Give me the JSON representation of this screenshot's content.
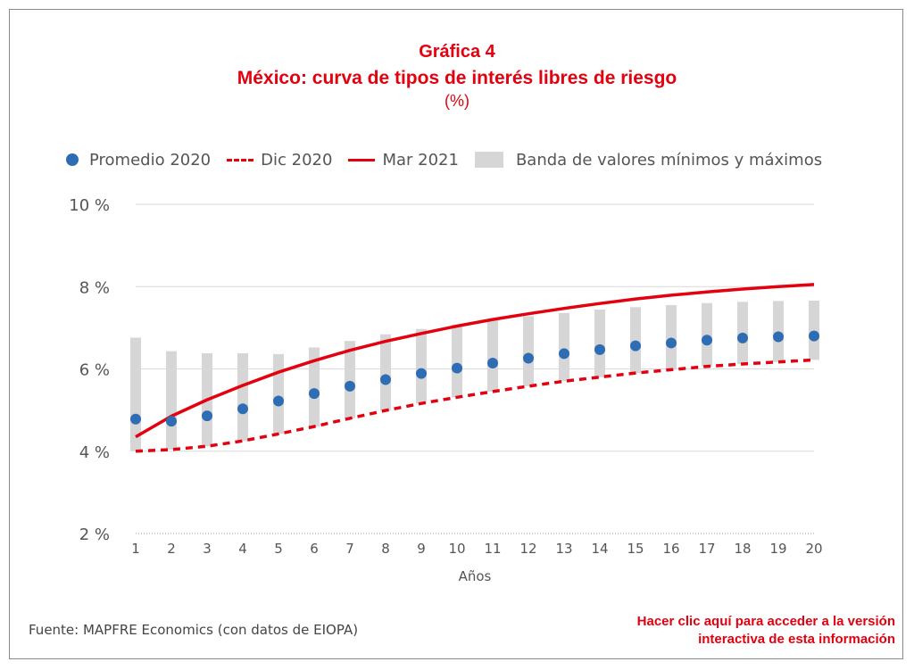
{
  "title": {
    "line1": "Gráfica 4",
    "line2": "México: curva de tipos de interés libres de riesgo",
    "line3": "(%)"
  },
  "legend": {
    "promedio": "Promedio 2020",
    "dic": "Dic 2020",
    "mar": "Mar 2021",
    "banda": "Banda de valores mínimos y máximos"
  },
  "footer": {
    "source": "Fuente: MAPFRE Economics (con datos de EIOPA)",
    "link_line1": "Hacer clic aquí para acceder a la versión",
    "link_line2": "interactiva de esta información"
  },
  "colors": {
    "accent": "#e3000f",
    "dots": "#2e6db4",
    "band": "#d6d6d6"
  },
  "chart_data": {
    "type": "line",
    "xlabel": "Años",
    "ylabel": "",
    "x": [
      1,
      2,
      3,
      4,
      5,
      6,
      7,
      8,
      9,
      10,
      11,
      12,
      13,
      14,
      15,
      16,
      17,
      18,
      19,
      20
    ],
    "ylim": [
      2,
      10
    ],
    "yticks": [
      2,
      4,
      6,
      8,
      10
    ],
    "ytick_labels": [
      "2 %",
      "4 %",
      "6 %",
      "8 %",
      "10 %"
    ],
    "grid": true,
    "legend_position": "top",
    "series": [
      {
        "name": "Promedio 2020",
        "kind": "scatter",
        "values": [
          4.78,
          4.73,
          4.86,
          5.03,
          5.22,
          5.4,
          5.58,
          5.74,
          5.89,
          6.02,
          6.14,
          6.26,
          6.37,
          6.47,
          6.56,
          6.63,
          6.7,
          6.75,
          6.78,
          6.8
        ]
      },
      {
        "name": "Dic 2020",
        "kind": "dashed-line",
        "values": [
          4.0,
          4.04,
          4.12,
          4.25,
          4.42,
          4.6,
          4.8,
          4.99,
          5.16,
          5.31,
          5.45,
          5.58,
          5.7,
          5.8,
          5.9,
          5.98,
          6.06,
          6.12,
          6.17,
          6.22
        ]
      },
      {
        "name": "Mar 2021",
        "kind": "line",
        "values": [
          4.35,
          4.85,
          5.25,
          5.6,
          5.92,
          6.2,
          6.45,
          6.67,
          6.86,
          7.04,
          7.2,
          7.34,
          7.47,
          7.59,
          7.7,
          7.79,
          7.87,
          7.94,
          8.0,
          8.05
        ]
      },
      {
        "name": "Banda de valores mínimos y máximos",
        "kind": "band",
        "min": [
          4.0,
          4.04,
          4.12,
          4.25,
          4.42,
          4.6,
          4.8,
          4.99,
          5.16,
          5.31,
          5.45,
          5.58,
          5.7,
          5.8,
          5.9,
          5.98,
          6.06,
          6.12,
          6.17,
          6.22
        ],
        "max": [
          6.76,
          6.43,
          6.38,
          6.38,
          6.36,
          6.52,
          6.68,
          6.84,
          6.97,
          7.08,
          7.18,
          7.28,
          7.36,
          7.44,
          7.5,
          7.55,
          7.6,
          7.63,
          7.65,
          7.66
        ]
      }
    ]
  }
}
